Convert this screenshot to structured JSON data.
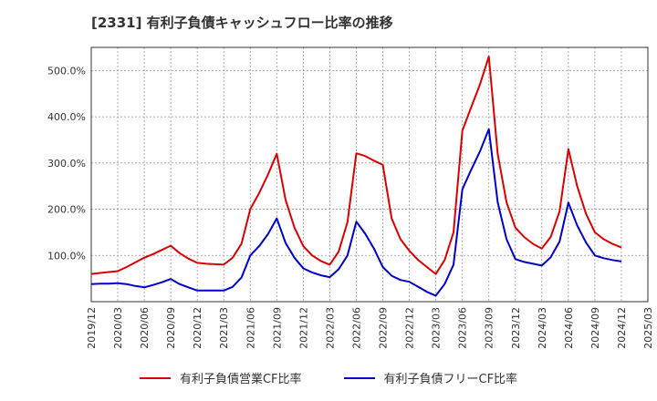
{
  "title": "[2331]  有利子負債キャッシュフロー比率の推移",
  "colors": {
    "series1": "#dd0000",
    "series2": "#0000cc",
    "grid": "#999999",
    "axis": "#333333"
  },
  "chart_data": {
    "type": "line",
    "title": "[2331]  有利子負債キャッシュフロー比率の推移",
    "xlabel": "",
    "ylabel": "",
    "ylim": [
      0,
      550
    ],
    "yticks": [
      100,
      200,
      300,
      400,
      500
    ],
    "ytick_labels": [
      "100.0%",
      "200.0%",
      "300.0%",
      "400.0%",
      "500.0%"
    ],
    "xticks": [
      "2019/12",
      "2020/03",
      "2020/06",
      "2020/09",
      "2020/12",
      "2021/03",
      "2021/06",
      "2021/09",
      "2021/12",
      "2022/03",
      "2022/06",
      "2022/09",
      "2022/12",
      "2023/03",
      "2023/06",
      "2023/09",
      "2023/12",
      "2024/03",
      "2024/06",
      "2024/09",
      "2024/12",
      "2025/03"
    ],
    "grid": true,
    "legend_position": "bottom",
    "x": [
      "2019/12",
      "2020/01",
      "2020/02",
      "2020/03",
      "2020/04",
      "2020/05",
      "2020/06",
      "2020/07",
      "2020/08",
      "2020/09",
      "2020/10",
      "2020/11",
      "2020/12",
      "2021/01",
      "2021/02",
      "2021/03",
      "2021/04",
      "2021/05",
      "2021/06",
      "2021/07",
      "2021/08",
      "2021/09",
      "2021/10",
      "2021/11",
      "2021/12",
      "2022/01",
      "2022/02",
      "2022/03",
      "2022/04",
      "2022/05",
      "2022/06",
      "2022/07",
      "2022/08",
      "2022/09",
      "2022/10",
      "2022/11",
      "2022/12",
      "2023/01",
      "2023/02",
      "2023/03",
      "2023/04",
      "2023/05",
      "2023/06",
      "2023/07",
      "2023/08",
      "2023/09",
      "2023/10",
      "2023/11",
      "2023/12",
      "2024/01",
      "2024/02",
      "2024/03",
      "2024/04",
      "2024/05",
      "2024/06",
      "2024/07",
      "2024/08",
      "2024/09",
      "2024/10",
      "2024/11",
      "2024/12"
    ],
    "series": [
      {
        "name": "有利子負債営業CF比率",
        "values": [
          60,
          62,
          64,
          66,
          75,
          85,
          95,
          103,
          112,
          121,
          105,
          93,
          84,
          82,
          81,
          80,
          95,
          125,
          200,
          235,
          275,
          320,
          220,
          160,
          120,
          100,
          88,
          80,
          108,
          172,
          321,
          315,
          305,
          296,
          180,
          135,
          110,
          90,
          75,
          60,
          90,
          150,
          370,
          420,
          470,
          530,
          320,
          215,
          160,
          140,
          125,
          115,
          140,
          195,
          330,
          250,
          190,
          150,
          135,
          125,
          117
        ]
      },
      {
        "name": "有利子負債フリーCF比率",
        "values": [
          38,
          39,
          39,
          40,
          38,
          34,
          31,
          36,
          42,
          49,
          38,
          31,
          24,
          24,
          24,
          24,
          32,
          52,
          100,
          120,
          146,
          180,
          127,
          95,
          72,
          63,
          57,
          53,
          70,
          100,
          173,
          147,
          115,
          75,
          56,
          47,
          43,
          32,
          21,
          13,
          38,
          80,
          243,
          285,
          325,
          373,
          215,
          135,
          92,
          86,
          82,
          78,
          96,
          130,
          214,
          165,
          128,
          100,
          94,
          90,
          87
        ]
      }
    ]
  }
}
